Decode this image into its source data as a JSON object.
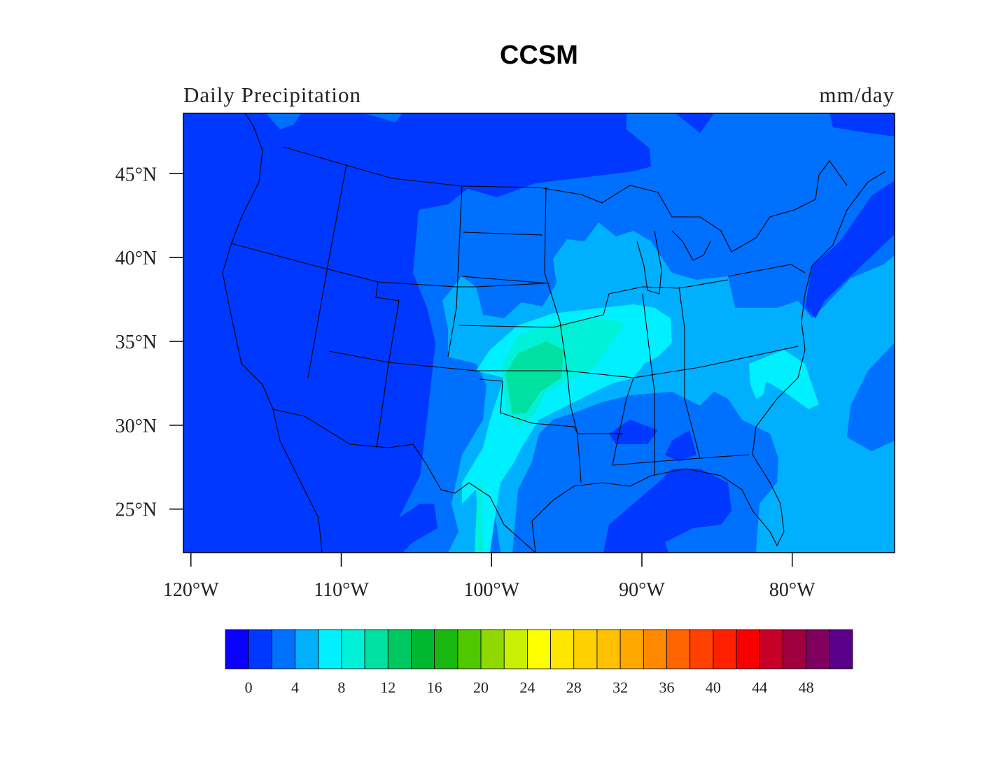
{
  "title": "CCSM",
  "left_string": "Daily Precipitation",
  "right_string": "mm/day",
  "map": {
    "projection": "cylindrical-equidistant",
    "lon_range": [
      -120.5,
      -72.7
    ],
    "lat_range": [
      22.4,
      48.6
    ],
    "lat_ticks": [
      "45°N",
      "40°N",
      "35°N",
      "30°N",
      "25°N"
    ],
    "lat_tick_values": [
      45,
      40,
      35,
      30,
      25
    ],
    "lon_ticks": [
      "120°W",
      "110°W",
      "100°W",
      "90°W",
      "80°W"
    ],
    "lon_tick_values": [
      -120,
      -110,
      -100,
      -90,
      -80
    ],
    "outlines": "US states, coastlines, Great Lakes"
  },
  "colorbar": {
    "orientation": "horizontal",
    "levels": [
      0,
      2,
      4,
      6,
      8,
      10,
      12,
      14,
      16,
      18,
      20,
      22,
      24,
      26,
      28,
      30,
      32,
      34,
      36,
      38,
      40,
      42,
      44,
      46,
      48,
      50
    ],
    "labels": [
      "0",
      "4",
      "8",
      "12",
      "16",
      "20",
      "24",
      "28",
      "32",
      "36",
      "40",
      "44",
      "48"
    ],
    "colors": [
      "#0a00ff",
      "#0038ff",
      "#0070ff",
      "#00b0ff",
      "#00f0ff",
      "#00f0d8",
      "#00e0a0",
      "#00c860",
      "#00b830",
      "#18b810",
      "#50c800",
      "#90d800",
      "#c8f000",
      "#ffff00",
      "#ffe600",
      "#ffd000",
      "#ffc000",
      "#ffa800",
      "#ff8800",
      "#ff6400",
      "#ff4000",
      "#ff2000",
      "#f80000",
      "#c80028",
      "#a00040",
      "#800060",
      "#5a0088"
    ]
  }
}
